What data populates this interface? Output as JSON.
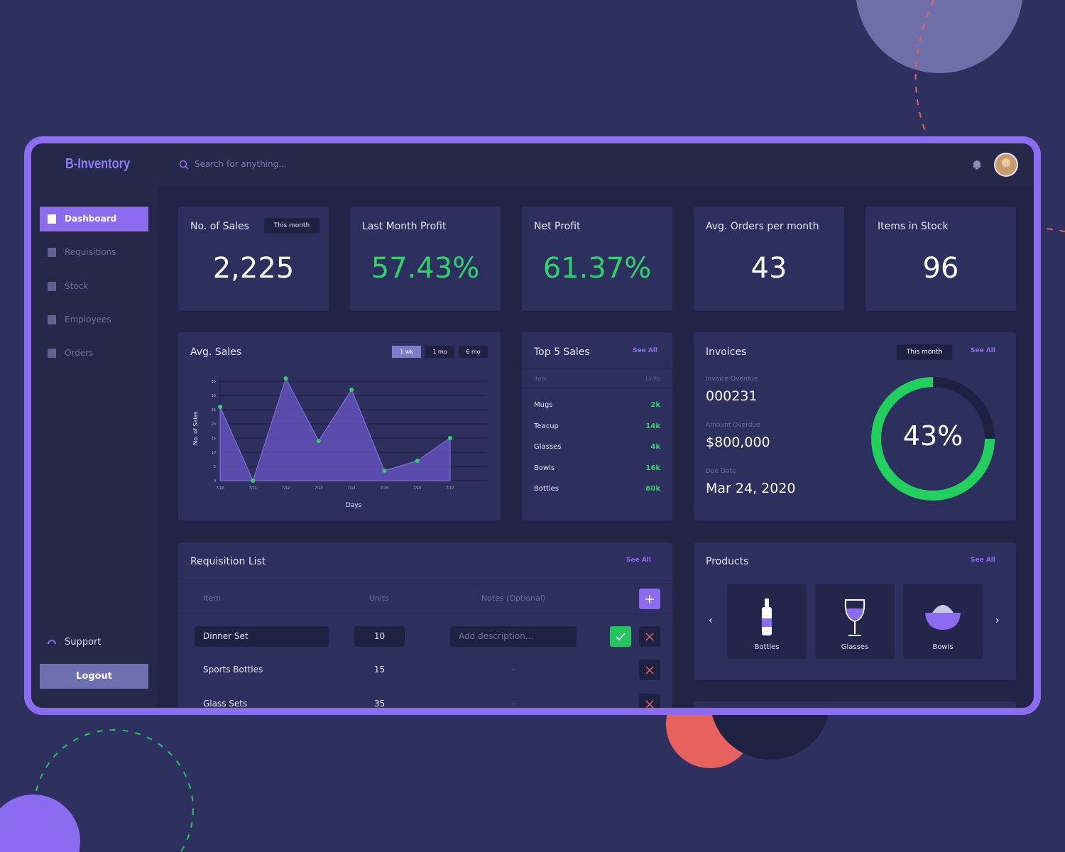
{
  "header": {
    "logo": "B-Inventory",
    "search_placeholder": "Search for anything..."
  },
  "sidebar": {
    "nav": [
      "Dashboard",
      "Requisitions",
      "Stock",
      "Employees",
      "Orders"
    ],
    "support": "Support",
    "logout": "Logout"
  },
  "stats": [
    {
      "label": "No. of Sales",
      "value": "2,225",
      "filter": "This month"
    },
    {
      "label": "Last Month Profit",
      "value": "57.43%"
    },
    {
      "label": "Net Profit",
      "value": "61.37%"
    },
    {
      "label": "Avg. Orders per month",
      "value": "43"
    },
    {
      "label": "Items in Stock",
      "value": "96"
    }
  ],
  "top_sales": {
    "title": "Top 5 Sales",
    "see_all": "See All",
    "columns": [
      "Item",
      "Units"
    ],
    "rows": [
      [
        "Mugs",
        "2k"
      ],
      [
        "Teacup",
        "14k"
      ],
      [
        "Glasses",
        "4k"
      ],
      [
        "Bowls",
        "16k"
      ],
      [
        "Bottles",
        "80k"
      ]
    ]
  },
  "invoices": {
    "title": "Invoices",
    "filter": "This month",
    "see_all": "See All",
    "fields": [
      {
        "label": "Invoice Overdue",
        "value": "000231"
      },
      {
        "label": "Amount Overdue",
        "value": "$800,000"
      },
      {
        "label": "Due Date",
        "value": "Mar 24, 2020"
      }
    ],
    "ring_label": "43%"
  },
  "requisitions": {
    "title": "Requisition List",
    "see_all": "See All",
    "columns": [
      "Item",
      "Units",
      "Notes (Optional)"
    ],
    "rows": [
      {
        "item": "Dinner Set",
        "units": "10",
        "notes": "Add description..."
      },
      {
        "item": "Sports Bottles",
        "units": "15",
        "notes": "-"
      },
      {
        "item": "Glass Sets",
        "units": "35",
        "notes": "-"
      }
    ]
  },
  "products": {
    "title": "Products",
    "see_all": "See All",
    "items": [
      "Bottles",
      "Glasses",
      "Bowls"
    ]
  },
  "chart_data": {
    "type": "area",
    "title": "Avg. Sales",
    "ranges": [
      "1 wk",
      "1 mo",
      "6 mo"
    ],
    "y_label": "No. of Sales",
    "x_label": "Days",
    "categories": [
      "7/10",
      "7/11",
      "7/12",
      "7/13",
      "7/14",
      "7/15",
      "7/16",
      "7/17"
    ],
    "values": [
      26,
      0,
      36,
      14,
      32,
      3.5,
      7,
      15
    ],
    "ylim": [
      0,
      35
    ],
    "yticks": [
      0,
      5,
      10,
      15,
      20,
      25,
      30,
      35
    ],
    "color": "#6a55c8",
    "grid": true
  }
}
